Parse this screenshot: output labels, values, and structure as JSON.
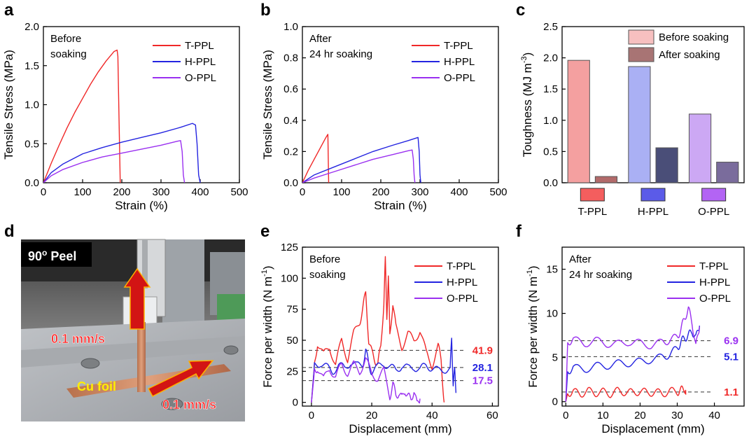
{
  "colors": {
    "T-PPL": "#f02828",
    "H-PPL": "#2424e0",
    "O-PPL": "#9a30f0",
    "before_T": "#f4a0a0",
    "before_H": "#aab0f4",
    "before_O": "#cca8f4",
    "after_T": "#b26a6a",
    "after_H": "#4a4e78",
    "after_O": "#7a6c9c"
  },
  "panels": {
    "a": {
      "label": "a"
    },
    "b": {
      "label": "b"
    },
    "c": {
      "label": "c"
    },
    "d": {
      "label": "d"
    },
    "e": {
      "label": "e"
    },
    "f": {
      "label": "f"
    }
  },
  "photo": {
    "title": "90",
    "title_sup": "o",
    "title_suffix": " Peel",
    "speed_up": "0.1 mm/s",
    "speed_right": "0.1 mm/s",
    "foil": "Cu foil"
  },
  "chart_data": [
    {
      "id": "a",
      "type": "line",
      "annotation": [
        "Before",
        "soaking"
      ],
      "xlabel": "Strain (%)",
      "ylabel": "Tensile Stress (MPa)",
      "xlim": [
        0,
        500
      ],
      "ylim": [
        0,
        2.0
      ],
      "xticks": [
        0,
        100,
        200,
        300,
        400,
        500
      ],
      "yticks": [
        0.0,
        0.5,
        1.0,
        1.5,
        2.0
      ],
      "ytick_labels": [
        "0.0",
        "0.5",
        "1.0",
        "1.5",
        "2.0"
      ],
      "legend": [
        "T-PPL",
        "H-PPL",
        "O-PPL"
      ],
      "series": [
        {
          "name": "T-PPL",
          "x": [
            0,
            20,
            40,
            60,
            80,
            100,
            120,
            140,
            160,
            180,
            188,
            190,
            193,
            196
          ],
          "y": [
            0,
            0.25,
            0.48,
            0.7,
            0.9,
            1.08,
            1.26,
            1.42,
            1.56,
            1.68,
            1.7,
            1.62,
            0.8,
            0
          ]
        },
        {
          "name": "H-PPL",
          "x": [
            0,
            20,
            50,
            100,
            150,
            200,
            250,
            300,
            350,
            380,
            388,
            392,
            396,
            400
          ],
          "y": [
            0,
            0.13,
            0.24,
            0.37,
            0.45,
            0.52,
            0.58,
            0.64,
            0.71,
            0.76,
            0.74,
            0.5,
            0.1,
            0
          ]
        },
        {
          "name": "O-PPL",
          "x": [
            0,
            20,
            50,
            100,
            150,
            200,
            250,
            300,
            340,
            350,
            354,
            357,
            360
          ],
          "y": [
            0,
            0.09,
            0.17,
            0.26,
            0.33,
            0.38,
            0.43,
            0.48,
            0.53,
            0.54,
            0.4,
            0.1,
            0
          ]
        }
      ]
    },
    {
      "id": "b",
      "type": "line",
      "annotation": [
        "After",
        "24 hr soaking"
      ],
      "xlabel": "Strain (%)",
      "ylabel": "Tensile Stress (MPa)",
      "xlim": [
        0,
        500
      ],
      "ylim": [
        0,
        1.0
      ],
      "xticks": [
        0,
        100,
        200,
        300,
        400,
        500
      ],
      "yticks": [
        0.0,
        0.2,
        0.4,
        0.6,
        0.8,
        1.0
      ],
      "ytick_labels": [
        "0.0",
        "0.2",
        "0.4",
        "0.6",
        "0.8",
        "1.0"
      ],
      "legend": [
        "T-PPL",
        "H-PPL",
        "O-PPL"
      ],
      "series": [
        {
          "name": "T-PPL",
          "x": [
            0,
            15,
            30,
            45,
            60,
            65,
            66,
            67
          ],
          "y": [
            0,
            0.08,
            0.15,
            0.22,
            0.29,
            0.31,
            0.15,
            0
          ]
        },
        {
          "name": "H-PPL",
          "x": [
            0,
            30,
            80,
            130,
            180,
            230,
            270,
            295,
            298,
            300,
            302
          ],
          "y": [
            0,
            0.05,
            0.1,
            0.15,
            0.2,
            0.24,
            0.27,
            0.29,
            0.2,
            0.05,
            0
          ]
        },
        {
          "name": "O-PPL",
          "x": [
            0,
            30,
            80,
            130,
            180,
            230,
            270,
            280,
            283,
            285,
            287
          ],
          "y": [
            0,
            0.03,
            0.07,
            0.11,
            0.15,
            0.18,
            0.205,
            0.21,
            0.15,
            0.05,
            0
          ]
        }
      ]
    },
    {
      "id": "c",
      "type": "bar",
      "ylabel": "Toughness (MJ m",
      "ylabel_sup": "-3",
      "ylabel_suffix": ")",
      "ylim": [
        0,
        2.5
      ],
      "yticks": [
        0.0,
        0.5,
        1.0,
        1.5,
        2.0,
        2.5
      ],
      "ytick_labels": [
        "0.0",
        "0.5",
        "1.0",
        "1.5",
        "2.0",
        "2.5"
      ],
      "categories": [
        "T-PPL",
        "H-PPL",
        "O-PPL"
      ],
      "legend": [
        "Before soaking",
        "After soaking"
      ],
      "series": [
        {
          "name": "Before soaking",
          "values": [
            1.96,
            1.86,
            1.1
          ]
        },
        {
          "name": "After soaking",
          "values": [
            0.1,
            0.56,
            0.33
          ]
        }
      ]
    },
    {
      "id": "e",
      "type": "line",
      "annotation": [
        "Before",
        "soaking"
      ],
      "xlabel": "Displacement (mm)",
      "ylabel": "Force per width (N m",
      "ylabel_sup": "-1",
      "ylabel_suffix": ")",
      "xlim": [
        -3,
        62
      ],
      "ylim": [
        -3,
        125
      ],
      "xticks": [
        0,
        20,
        40,
        60
      ],
      "yticks": [
        0,
        25,
        50,
        75,
        100,
        125
      ],
      "ytick_labels": [
        "0",
        "25",
        "50",
        "75",
        "100",
        "125"
      ],
      "legend": [
        "T-PPL",
        "H-PPL",
        "O-PPL"
      ],
      "averages": [
        {
          "name": "T-PPL",
          "value": 41.9,
          "label": "41.9"
        },
        {
          "name": "H-PPL",
          "value": 28.1,
          "label": "28.1"
        },
        {
          "name": "O-PPL",
          "value": 17.5,
          "label": "17.5"
        }
      ],
      "series": [
        {
          "name": "T-PPL",
          "x": [
            0,
            1,
            2,
            4,
            6,
            8,
            10,
            12,
            14,
            16,
            17,
            18,
            19,
            20,
            21,
            22,
            23,
            24,
            24.5,
            25,
            25.5,
            26,
            27,
            28,
            30,
            32,
            34,
            36,
            38,
            40,
            42,
            43,
            44
          ],
          "y": [
            0,
            30,
            48,
            38,
            45,
            30,
            50,
            35,
            55,
            65,
            75,
            88,
            50,
            40,
            35,
            30,
            45,
            80,
            114,
            70,
            100,
            55,
            80,
            60,
            45,
            55,
            50,
            58,
            40,
            30,
            45,
            35,
            0
          ]
        },
        {
          "name": "H-PPL",
          "x": [
            0,
            1,
            3,
            5,
            7,
            9,
            11,
            13,
            15,
            17,
            18,
            19,
            20,
            22,
            24,
            26,
            28,
            30,
            32,
            34,
            36,
            38,
            40,
            42,
            44,
            46,
            46.5,
            47,
            47.5,
            48
          ],
          "y": [
            0,
            30,
            32,
            28,
            25,
            30,
            27,
            33,
            29,
            31,
            42,
            30,
            25,
            28,
            32,
            28,
            26,
            30,
            27,
            29,
            26,
            30,
            28,
            25,
            27,
            26,
            52,
            15,
            25,
            8
          ]
        },
        {
          "name": "O-PPL",
          "x": [
            0,
            1,
            2,
            4,
            6,
            8,
            10,
            12,
            14,
            16,
            18,
            20,
            22,
            24,
            26,
            27,
            28,
            29,
            30,
            31,
            32,
            33,
            34,
            35,
            36
          ],
          "y": [
            0,
            25,
            28,
            18,
            28,
            20,
            30,
            24,
            30,
            25,
            35,
            22,
            20,
            25,
            5,
            15,
            5,
            8,
            3,
            10,
            5,
            2,
            10,
            -2,
            3
          ]
        }
      ]
    },
    {
      "id": "f",
      "type": "line",
      "annotation": [
        "After",
        "24 hr soaking"
      ],
      "xlabel": "Displacement (mm)",
      "ylabel": "Force per width (N m",
      "ylabel_sup": "-1",
      "ylabel_suffix": ")",
      "xlim": [
        -1,
        48
      ],
      "ylim": [
        -0.5,
        17.5
      ],
      "xticks": [
        0,
        10,
        20,
        30,
        40
      ],
      "yticks": [
        0,
        5,
        10,
        15
      ],
      "ytick_labels": [
        "0",
        "5",
        "10",
        "15"
      ],
      "legend": [
        "T-PPL",
        "H-PPL",
        "O-PPL"
      ],
      "averages": [
        {
          "name": "T-PPL",
          "value": 1.1,
          "label": "1.1"
        },
        {
          "name": "H-PPL",
          "value": 5.1,
          "label": "5.1"
        },
        {
          "name": "O-PPL",
          "value": 6.9,
          "label": "6.9"
        }
      ],
      "series": [
        {
          "name": "T-PPL",
          "x": [
            0,
            0.5,
            2,
            4,
            6,
            8,
            10,
            12,
            14,
            16,
            18,
            20,
            22,
            24,
            26,
            28,
            30,
            31,
            32,
            32.3
          ],
          "y": [
            0,
            1.0,
            1.1,
            0.9,
            1.2,
            1.0,
            1.1,
            0.9,
            1.2,
            1.1,
            1.0,
            1.2,
            1.0,
            1.1,
            0.9,
            1.2,
            1.1,
            1.3,
            1.5,
            0.8
          ]
        },
        {
          "name": "H-PPL",
          "x": [
            0,
            0.5,
            2,
            5,
            8,
            11,
            14,
            17,
            20,
            23,
            26,
            28,
            30,
            31,
            32,
            33,
            34,
            35,
            36
          ],
          "y": [
            0,
            3.5,
            3.8,
            3.7,
            4.0,
            4.1,
            4.3,
            4.4,
            4.5,
            4.8,
            5.0,
            5.4,
            6.0,
            6.8,
            7.2,
            7.5,
            8.0,
            7.2,
            8.6
          ]
        },
        {
          "name": "O-PPL",
          "x": [
            0,
            0.5,
            2,
            5,
            8,
            11,
            14,
            17,
            20,
            23,
            26,
            28,
            30,
            31,
            32,
            33,
            34,
            35,
            36
          ],
          "y": [
            0,
            6.8,
            7.0,
            6.6,
            6.9,
            6.6,
            6.5,
            6.8,
            6.6,
            6.4,
            6.7,
            7.0,
            7.3,
            8.2,
            9.5,
            10.5,
            9.0,
            6.2,
            8.5
          ]
        }
      ]
    }
  ]
}
